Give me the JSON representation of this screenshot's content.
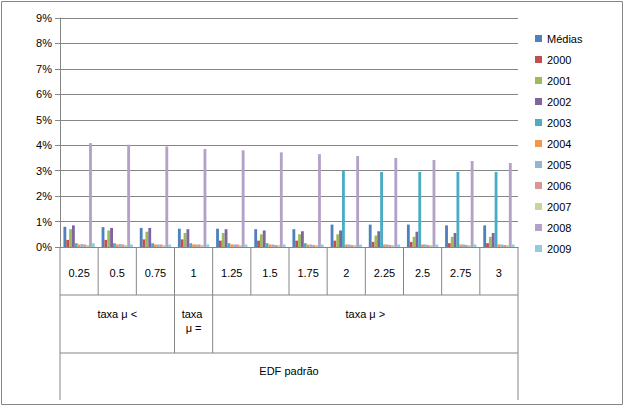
{
  "chart_data": {
    "type": "bar",
    "categories": [
      "0.25",
      "0.5",
      "0.75",
      "1",
      "1.25",
      "1.5",
      "1.75",
      "2",
      "2.25",
      "2.5",
      "2.75",
      "3"
    ],
    "category_groups": [
      "taxa μ <",
      "taxa μ <",
      "taxa μ <",
      "taxa μ =",
      "taxa μ >",
      "taxa μ >",
      "taxa μ >",
      "taxa μ >",
      "taxa μ >",
      "taxa μ >",
      "taxa μ >",
      "taxa μ >"
    ],
    "category_super_group": "EDF padrão",
    "series": [
      {
        "name": "Médias",
        "color": "#4F81BD",
        "values": [
          0.8,
          0.78,
          0.75,
          0.72,
          0.72,
          0.7,
          0.7,
          0.88,
          0.88,
          0.88,
          0.85,
          0.85
        ]
      },
      {
        "name": "2000",
        "color": "#C0504D",
        "values": [
          0.28,
          0.28,
          0.3,
          0.3,
          0.25,
          0.25,
          0.25,
          0.25,
          0.2,
          0.2,
          0.15,
          0.15
        ]
      },
      {
        "name": "2001",
        "color": "#9BBB59",
        "values": [
          0.7,
          0.65,
          0.6,
          0.55,
          0.55,
          0.5,
          0.5,
          0.5,
          0.45,
          0.4,
          0.4,
          0.4
        ]
      },
      {
        "name": "2002",
        "color": "#8064A2",
        "values": [
          0.85,
          0.75,
          0.75,
          0.7,
          0.7,
          0.65,
          0.62,
          0.65,
          0.62,
          0.6,
          0.55,
          0.55
        ]
      },
      {
        "name": "2003",
        "color": "#4BACC6",
        "values": [
          0.15,
          0.15,
          0.15,
          0.15,
          0.15,
          0.15,
          0.15,
          3.0,
          2.95,
          2.95,
          2.95,
          2.95
        ]
      },
      {
        "name": "2004",
        "color": "#F79646",
        "values": [
          0.1,
          0.1,
          0.1,
          0.1,
          0.1,
          0.1,
          0.1,
          0.1,
          0.1,
          0.1,
          0.1,
          0.1
        ]
      },
      {
        "name": "2005",
        "color": "#95B3D7",
        "values": [
          0.12,
          0.12,
          0.1,
          0.1,
          0.1,
          0.1,
          0.1,
          0.1,
          0.1,
          0.1,
          0.1,
          0.1
        ]
      },
      {
        "name": "2006",
        "color": "#D99694",
        "values": [
          0.1,
          0.1,
          0.1,
          0.1,
          0.1,
          0.08,
          0.08,
          0.08,
          0.08,
          0.08,
          0.08,
          0.08
        ]
      },
      {
        "name": "2007",
        "color": "#C3D69B",
        "values": [
          0.08,
          0.08,
          0.08,
          0.08,
          0.08,
          0.08,
          0.08,
          0.08,
          0.08,
          0.08,
          0.08,
          0.08
        ]
      },
      {
        "name": "2008",
        "color": "#B3A2C7",
        "values": [
          4.08,
          4.02,
          3.95,
          3.85,
          3.8,
          3.72,
          3.65,
          3.58,
          3.5,
          3.42,
          3.38,
          3.3
        ]
      },
      {
        "name": "2009",
        "color": "#93CDDD",
        "values": [
          0.15,
          0.1,
          0.1,
          0.1,
          0.1,
          0.1,
          0.1,
          0.1,
          0.1,
          0.1,
          0.1,
          0.1
        ]
      }
    ],
    "ylim": [
      0,
      9
    ],
    "yticks": [
      {
        "value": 0,
        "label": "0%"
      },
      {
        "value": 1,
        "label": "1%"
      },
      {
        "value": 2,
        "label": "2%"
      },
      {
        "value": 3,
        "label": "3%"
      },
      {
        "value": 4,
        "label": "4%"
      },
      {
        "value": 5,
        "label": "5%"
      },
      {
        "value": 6,
        "label": "6%"
      },
      {
        "value": 7,
        "label": "7%"
      },
      {
        "value": 8,
        "label": "8%"
      },
      {
        "value": 9,
        "label": "9%"
      }
    ],
    "grid": true,
    "legend": "right"
  }
}
